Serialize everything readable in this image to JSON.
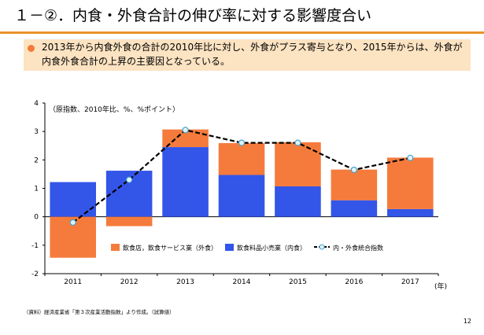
{
  "slide": {
    "title": "１－②．内食・外食合計の伸び率に対する影響度合い",
    "summary": "2013年から内食外食の合計の2010年比に対し、外食がプラス寄与となり、2015年からは、外食が内食外食合計の上昇の主要因となっている。",
    "source_note": "（資料）経済産業省「第３次産業活動指数」より作成。（試算値）",
    "page_number": "12",
    "colors": {
      "accent_rule": "#E8922B",
      "summary_bg": "#FCE3C2",
      "bullet": "#F27B3A"
    }
  },
  "chart_data": {
    "type": "bar",
    "stacked": true,
    "unit_note": "（原指数、2010年比、%、%ポイント）",
    "xlabel": "(年)",
    "categories": [
      "2011",
      "2012",
      "2013",
      "2014",
      "2015",
      "2016",
      "2017"
    ],
    "ylim": [
      -2,
      4
    ],
    "yticks": [
      -2,
      -1,
      0,
      1,
      2,
      3,
      4
    ],
    "grid": false,
    "legend_position": "bottom-right",
    "series": [
      {
        "name": "飲食料品小売業（内食）",
        "type": "bar",
        "color": "#3355E8",
        "values": [
          1.22,
          1.62,
          2.45,
          1.47,
          1.07,
          0.58,
          0.27
        ]
      },
      {
        "name": "飲食店，飲食サービス業（外食）",
        "type": "bar",
        "color": "#F57B3C",
        "values": [
          -1.44,
          -0.33,
          0.62,
          1.12,
          1.55,
          1.08,
          1.81
        ]
      },
      {
        "name": "内・外食統合指数",
        "type": "line",
        "color": "#000000",
        "marker_fill": "#DFF3FB",
        "marker_edge": "#4BA3C8",
        "values": [
          -0.2,
          1.3,
          3.05,
          2.6,
          2.6,
          1.65,
          2.07
        ]
      }
    ],
    "legend_order": [
      1,
      0,
      2
    ]
  }
}
